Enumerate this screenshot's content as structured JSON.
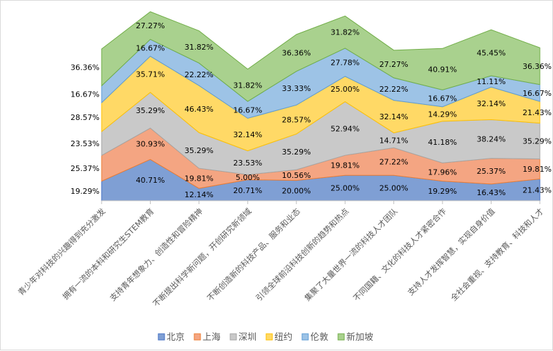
{
  "chart_data": {
    "type": "area",
    "stacked": true,
    "percent_stacked": true,
    "title": "",
    "xlabel": "",
    "ylabel": "",
    "categories": [
      "青少年对科技的兴趣得到充分激发",
      "拥有一流的本科和研究生STEM教育",
      "支持青年想象力、创造性和冒险精神",
      "不断提出科学新问题，开创研究新领域",
      "不断创造新的科技产品、服务和业态",
      "引领全球前沿科技创新的趋势和热点",
      "集聚了大量世界一流的科技人才团队",
      "不同国籍、文化的科技人才紧密合作",
      "支持人才发挥智慧，实现自身价值",
      "全社会重视、支持教育、科技和人才"
    ],
    "series": [
      {
        "name": "北京",
        "color": "#7f9fd4",
        "edge": "#4472c4",
        "values": [
          19.29,
          40.71,
          12.14,
          20.71,
          20.0,
          25.0,
          25.0,
          19.29,
          16.43,
          21.43
        ],
        "labels": [
          "19.29%",
          "40.71%",
          "12.14%",
          "20.71%",
          "20.00%",
          "25.00%",
          "25.00%",
          "19.29%",
          "16.43%",
          "21.43%"
        ]
      },
      {
        "name": "上海",
        "color": "#f4a582",
        "edge": "#ed7d31",
        "values": [
          25.37,
          30.93,
          19.81,
          5.0,
          10.56,
          19.81,
          27.22,
          17.96,
          25.37,
          19.81
        ],
        "labels": [
          "25.37%",
          "30.93%",
          "19.81%",
          "5.00%",
          "10.56%",
          "19.81%",
          "27.22%",
          "17.96%",
          "25.37%",
          "19.81%"
        ]
      },
      {
        "name": "深圳",
        "color": "#c9c9c9",
        "edge": "#a5a5a5",
        "values": [
          23.53,
          35.29,
          35.29,
          23.53,
          35.29,
          52.94,
          14.71,
          41.18,
          38.24,
          35.29
        ],
        "labels": [
          "23.53%",
          "35.29%",
          "35.29%",
          "23.53%",
          "35.29%",
          "52.94%",
          "14.71%",
          "41.18%",
          "38.24%",
          "35.29%"
        ]
      },
      {
        "name": "纽约",
        "color": "#ffd966",
        "edge": "#ffc000",
        "values": [
          28.57,
          35.71,
          46.43,
          32.14,
          28.57,
          25.0,
          32.14,
          14.29,
          32.14,
          21.43
        ],
        "labels": [
          "28.57%",
          "35.71%",
          "46.43%",
          "32.14%",
          "28.57%",
          "25.00%",
          "32.14%",
          "14.29%",
          "32.14%",
          "21.43%"
        ]
      },
      {
        "name": "伦敦",
        "color": "#9dc3e6",
        "edge": "#5b9bd5",
        "values": [
          16.67,
          16.67,
          22.22,
          16.67,
          33.33,
          27.78,
          22.22,
          16.67,
          11.11,
          16.67
        ],
        "labels": [
          "16.67%",
          "16.67%",
          "22.22%",
          "16.67%",
          "33.33%",
          "27.78%",
          "22.22%",
          "16.67%",
          "11.11%",
          "16.67%"
        ]
      },
      {
        "name": "新加坡",
        "color": "#a9d18e",
        "edge": "#70ad47",
        "values": [
          36.36,
          27.27,
          31.82,
          31.82,
          36.36,
          31.82,
          27.27,
          40.91,
          45.45,
          36.36
        ],
        "labels": [
          "36.36%",
          "27.27%",
          "31.82%",
          "31.82%",
          "36.36%",
          "31.82%",
          "27.27%",
          "40.91%",
          "45.45%",
          "36.36%"
        ]
      }
    ],
    "legend_position": "bottom",
    "grid": false
  }
}
